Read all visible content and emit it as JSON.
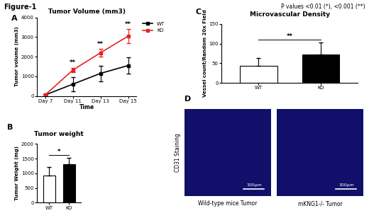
{
  "figure_title": "Figure-1",
  "note": "P values <0.01 (*), <0.001 (**)",
  "chart_data": [
    {
      "panel": "A",
      "type": "line",
      "title": "Tumor Volume (mm3)",
      "x_label": "Time",
      "y_label": "Tumor volume (mm3)",
      "categories": [
        "Day 7",
        "Day 11",
        "Day 13",
        "Day 15"
      ],
      "series": [
        {
          "name": "WT",
          "color": "#000000",
          "marker": "s",
          "values": [
            50,
            600,
            1150,
            1550
          ],
          "errors": [
            30,
            350,
            400,
            400
          ]
        },
        {
          "name": "KO",
          "color": "#e8231f",
          "marker": "s",
          "values": [
            50,
            1320,
            2200,
            3050
          ],
          "errors": [
            30,
            120,
            200,
            350
          ]
        }
      ],
      "significance": [
        null,
        "**",
        "**",
        "**"
      ],
      "ylim": [
        0,
        4000
      ],
      "yticks": [
        0,
        1000,
        2000,
        3000,
        4000
      ],
      "legend": "upper left"
    },
    {
      "panel": "B",
      "type": "bar",
      "title": "Tumor weight",
      "y_label": "Tumor Weight (mg)",
      "categories": [
        "WT",
        "KO"
      ],
      "values": [
        920,
        1320
      ],
      "errors": [
        300,
        200
      ],
      "colors": [
        "#ffffff",
        "#000000"
      ],
      "significance": "*",
      "ylim": [
        0,
        2000
      ],
      "yticks": [
        0,
        500,
        1000,
        1500,
        2000
      ]
    },
    {
      "panel": "C",
      "type": "bar",
      "title": "Microvascular Density",
      "y_label": "Vessel count/Random 20x Field",
      "categories": [
        "WT",
        "KO"
      ],
      "values": [
        44,
        73
      ],
      "errors": [
        20,
        30
      ],
      "colors": [
        "#ffffff",
        "#000000"
      ],
      "significance": "**",
      "ylim": [
        0,
        150
      ],
      "yticks": [
        0,
        50,
        100,
        150
      ]
    }
  ],
  "images": {
    "panel": "D",
    "row_label": "CD31 Staining",
    "panels": [
      {
        "caption": "Wild-type mice Tumor",
        "scale_bar": "100μm"
      },
      {
        "caption": "mKNG1-/- Tumor",
        "scale_bar": "100μm"
      }
    ]
  }
}
